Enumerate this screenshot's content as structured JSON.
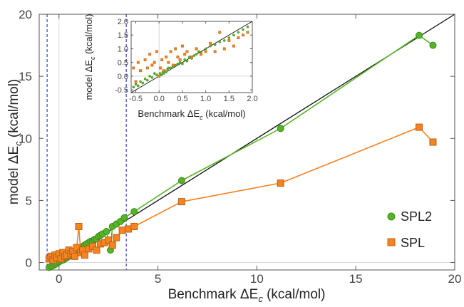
{
  "chart_data": [
    {
      "type": "line",
      "xlabel": "Benchmark ΔE",
      "xlabel_sub": "c",
      "xlabel_unit": " (kcal/mol)",
      "ylabel": "model ΔE",
      "ylabel_sub": "c",
      "ylabel_unit": " (kcal/mol)",
      "xlim": [
        -1.0,
        20.0
      ],
      "ylim": [
        -0.6,
        20.0
      ],
      "xticks": [
        0,
        5,
        10,
        15,
        20
      ],
      "yticks": [
        0,
        5,
        10,
        15,
        20
      ],
      "xtick_labels": [
        "0",
        "5",
        "10",
        "15",
        "20"
      ],
      "ytick_labels": [
        "0",
        "5",
        "10",
        "15",
        "20"
      ],
      "diagonal_reference": true,
      "vertical_reference_lines": [
        -0.6,
        3.4
      ],
      "legend_position": "lower-right",
      "series": [
        {
          "name": "SPL2",
          "color": "#55b526",
          "marker": "circle",
          "x": [
            -0.5,
            -0.4,
            -0.3,
            -0.2,
            -0.1,
            0.0,
            0.1,
            0.2,
            0.3,
            0.4,
            0.5,
            0.6,
            0.7,
            0.8,
            0.9,
            1.0,
            1.1,
            1.2,
            1.3,
            1.4,
            1.5,
            1.6,
            1.7,
            1.8,
            1.9,
            2.0,
            2.1,
            2.2,
            2.4,
            2.6,
            2.7,
            2.9,
            3.1,
            3.3,
            3.8,
            6.2,
            11.2,
            18.2,
            18.9
          ],
          "y": [
            -0.4,
            -0.3,
            -0.25,
            -0.15,
            -0.05,
            0.05,
            0.15,
            0.2,
            0.3,
            0.4,
            0.5,
            0.55,
            0.65,
            0.8,
            0.9,
            1.0,
            1.1,
            1.3,
            1.4,
            1.5,
            1.6,
            1.7,
            1.75,
            1.85,
            1.9,
            2.1,
            2.2,
            2.3,
            2.5,
            1.0,
            2.9,
            3.1,
            3.3,
            3.6,
            4.1,
            6.6,
            10.8,
            18.3,
            17.5
          ]
        },
        {
          "name": "SPL",
          "color": "#f5831f",
          "marker": "square",
          "x": [
            -0.5,
            -0.4,
            -0.3,
            -0.2,
            -0.1,
            0.0,
            0.1,
            0.2,
            0.3,
            0.4,
            0.5,
            0.6,
            0.7,
            0.8,
            0.9,
            1.0,
            1.1,
            1.2,
            1.3,
            1.5,
            1.7,
            1.9,
            2.1,
            2.3,
            2.5,
            2.7,
            2.9,
            3.2,
            3.5,
            3.8,
            6.2,
            11.2,
            18.2,
            18.9
          ],
          "y": [
            0.3,
            0.5,
            0.2,
            0.6,
            0.4,
            0.7,
            0.3,
            0.8,
            0.5,
            0.6,
            1.0,
            0.7,
            0.9,
            0.5,
            1.2,
            2.9,
            0.8,
            1.0,
            0.6,
            1.1,
            1.3,
            1.0,
            1.5,
            1.6,
            1.8,
            1.4,
            2.0,
            2.6,
            2.7,
            2.9,
            4.9,
            6.4,
            10.9,
            9.7
          ]
        }
      ]
    },
    {
      "type": "scatter",
      "role": "inset",
      "xlabel": "Benchmark ΔE",
      "xlabel_sub": "c",
      "xlabel_unit": " (kcal/mol)",
      "ylabel": "model ΔE",
      "ylabel_sub": "c",
      "ylabel_unit": " (kcal/mol)",
      "xlim": [
        -0.6,
        2.0
      ],
      "ylim": [
        -0.6,
        2.0
      ],
      "xticks": [
        -0.5,
        0.0,
        0.5,
        1.0,
        1.5,
        2.0
      ],
      "yticks": [
        -0.5,
        0.0,
        0.5,
        1.0,
        1.5,
        2.0
      ],
      "xtick_labels": [
        "-0.5",
        "0.0",
        "0.5",
        "1.0",
        "1.5",
        "2.0"
      ],
      "ytick_labels": [
        "-0.5",
        "0.0",
        "0.5",
        "1.0",
        "1.5",
        "2.0"
      ],
      "diagonal_reference": true,
      "series": [
        {
          "name": "SPL2",
          "color": "#55b526",
          "marker": "circle",
          "x": [
            -0.55,
            -0.5,
            -0.45,
            -0.4,
            -0.35,
            -0.3,
            -0.25,
            -0.2,
            -0.15,
            -0.1,
            -0.05,
            0.0,
            0.02,
            0.05,
            0.08,
            0.1,
            0.12,
            0.15,
            0.18,
            0.2,
            0.25,
            0.3,
            0.35,
            0.4,
            0.45,
            0.5,
            0.55,
            0.6,
            0.65,
            0.7,
            0.75,
            0.8,
            0.85,
            0.9,
            1.0,
            1.1,
            1.2,
            1.3,
            1.4,
            1.5,
            1.6,
            1.7,
            1.8,
            1.9
          ],
          "y": [
            -0.4,
            -0.3,
            -0.35,
            -0.2,
            -0.25,
            -0.1,
            -0.15,
            0.0,
            -0.05,
            0.1,
            0.05,
            0.0,
            0.1,
            0.05,
            0.15,
            0.1,
            0.2,
            0.15,
            0.25,
            0.3,
            0.3,
            0.35,
            0.4,
            0.45,
            0.5,
            0.45,
            0.6,
            0.55,
            0.7,
            0.65,
            0.75,
            0.8,
            0.9,
            0.85,
            1.0,
            1.1,
            1.15,
            1.25,
            1.3,
            1.4,
            1.5,
            1.6,
            1.7,
            1.8
          ]
        },
        {
          "name": "SPL",
          "color": "#f5831f",
          "marker": "square",
          "x": [
            -0.55,
            -0.5,
            -0.45,
            -0.4,
            -0.3,
            -0.25,
            -0.2,
            -0.15,
            -0.1,
            -0.05,
            0.0,
            0.03,
            0.06,
            0.1,
            0.15,
            0.2,
            0.25,
            0.3,
            0.35,
            0.4,
            0.45,
            0.5,
            0.55,
            0.6,
            0.7,
            0.8,
            0.9,
            1.0,
            1.1,
            1.2,
            1.3,
            1.4,
            1.5,
            1.6,
            1.7,
            1.8,
            1.9
          ],
          "y": [
            0.3,
            -0.2,
            0.5,
            0.2,
            0.6,
            0.3,
            0.8,
            0.4,
            0.5,
            0.9,
            0.0,
            0.3,
            0.6,
            0.2,
            0.7,
            0.5,
            0.9,
            0.4,
            1.0,
            0.7,
            0.6,
            1.1,
            0.8,
            0.9,
            0.7,
            1.0,
            0.8,
            0.9,
            1.2,
            0.9,
            1.6,
            1.0,
            1.3,
            1.1,
            1.4,
            1.5,
            1.6
          ]
        }
      ]
    }
  ]
}
